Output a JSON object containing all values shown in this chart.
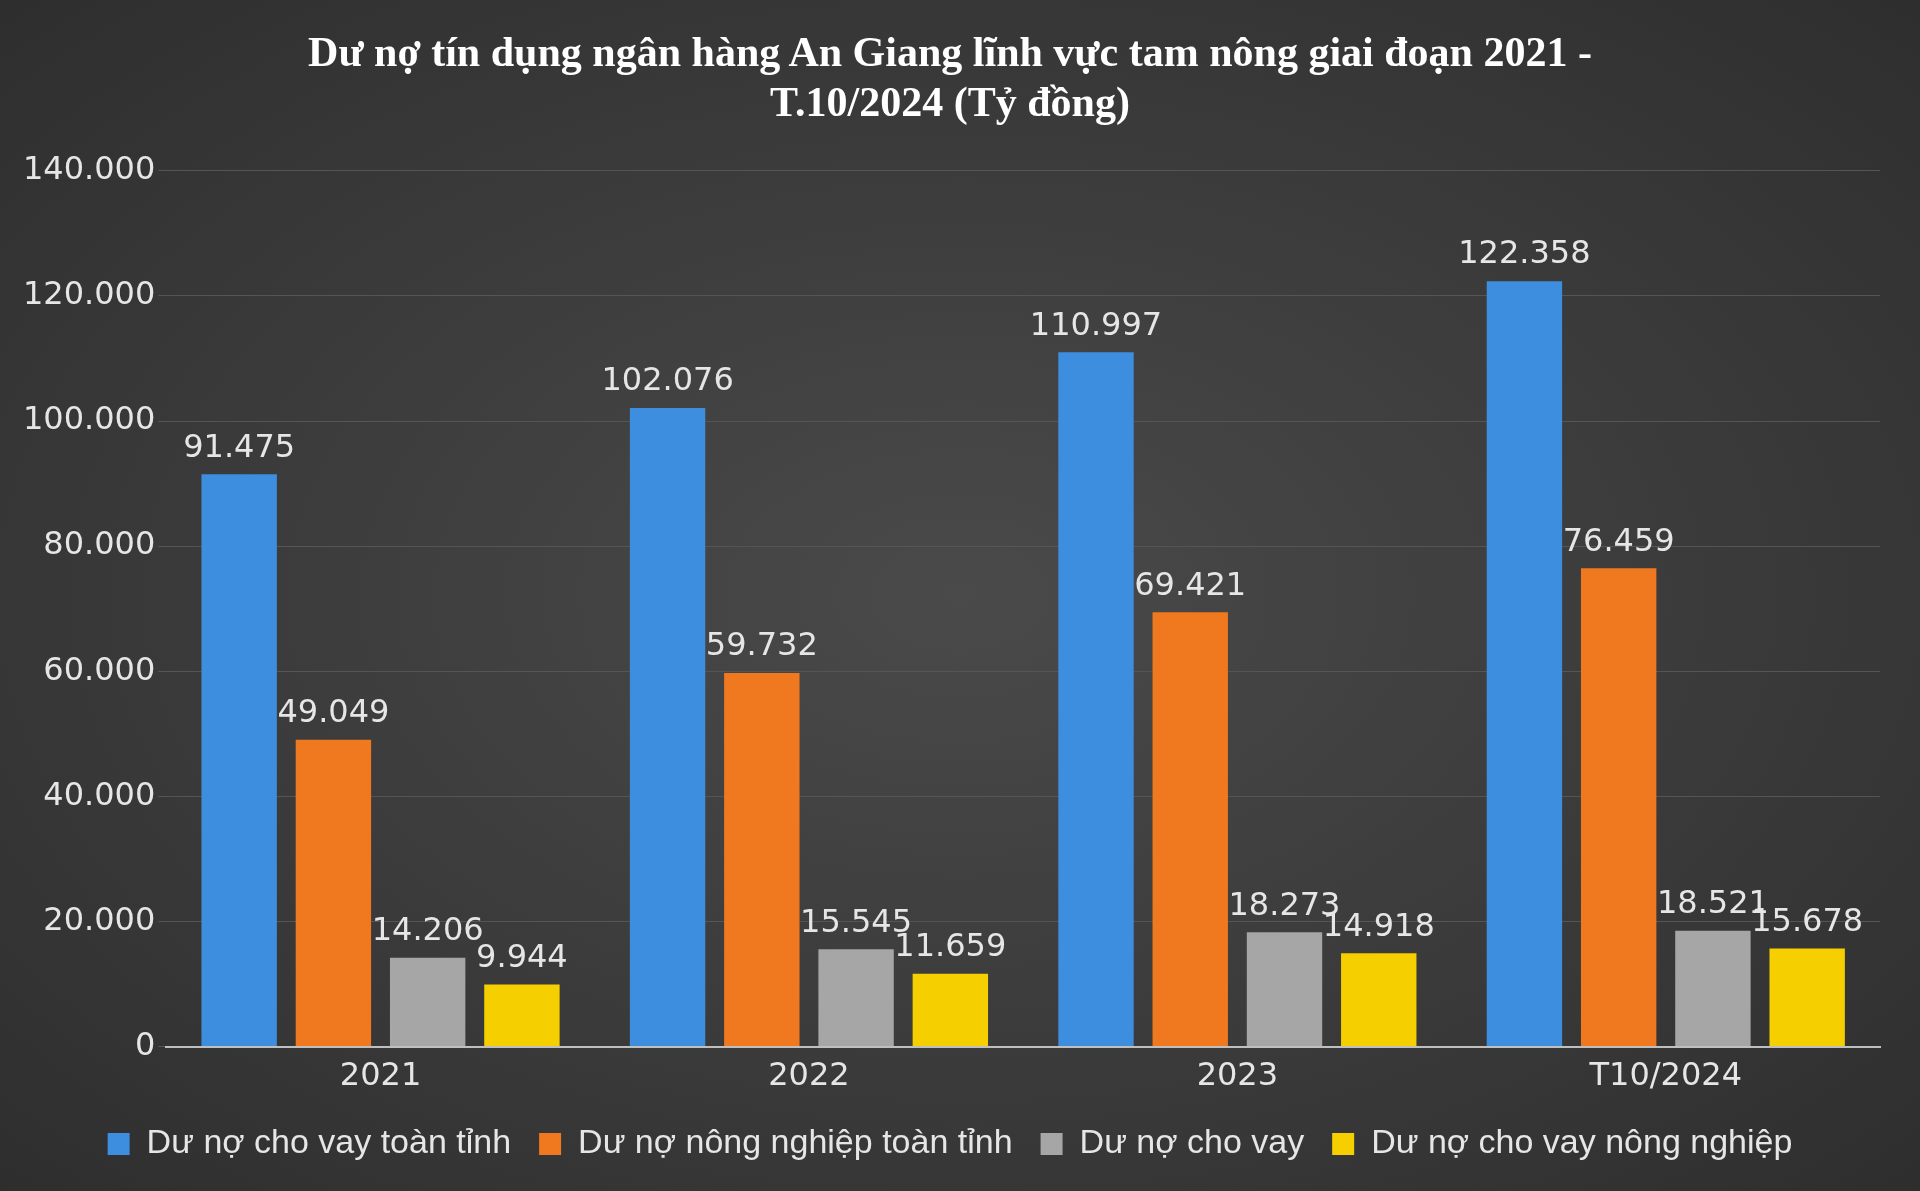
{
  "chart_data": {
    "type": "bar",
    "title": "Dư nợ tín dụng ngân hàng An Giang lĩnh vực tam nông giai đoạn 2021 - T.10/2024 (Tỷ đồng)",
    "categories": [
      "2021",
      "2022",
      "2023",
      "T10/2024"
    ],
    "series": [
      {
        "name": "Dư nợ cho vay toàn tỉnh",
        "color": "#3d8ede",
        "values": [
          91475,
          102076,
          110997,
          122358
        ],
        "value_labels": [
          "91.475",
          "102.076",
          "110.997",
          "122.358"
        ]
      },
      {
        "name": "Dư nợ nông nghiệp toàn tỉnh",
        "color": "#f0781e",
        "values": [
          49049,
          59732,
          69421,
          76459
        ],
        "value_labels": [
          "49.049",
          "59.732",
          "69.421",
          "76.459"
        ]
      },
      {
        "name": "Dư nợ cho vay",
        "color": "#a6a6a6",
        "values": [
          14206,
          15545,
          18273,
          18521
        ],
        "value_labels": [
          "14.206",
          "15.545",
          "18.273",
          "18.521"
        ]
      },
      {
        "name": "Dư nợ cho vay nông nghiệp",
        "color": "#f5cf00",
        "values": [
          9944,
          11659,
          14918,
          15678
        ],
        "value_labels": [
          "9.944",
          "11.659",
          "14.918",
          "15.678"
        ]
      }
    ],
    "ylim": [
      0,
      140000
    ],
    "yticks": [
      0,
      {
        "value": 20000,
        "label": "20.000"
      },
      {
        "value": 40000,
        "label": "40.000"
      },
      {
        "value": 60000,
        "label": "60.000"
      },
      {
        "value": 80000,
        "label": "80.000"
      },
      {
        "value": 100000,
        "label": "100.000"
      },
      {
        "value": 120000,
        "label": "120.000"
      },
      {
        "value": 140000,
        "label": "140.000"
      }
    ],
    "grid": "y",
    "legend": "bottom"
  }
}
